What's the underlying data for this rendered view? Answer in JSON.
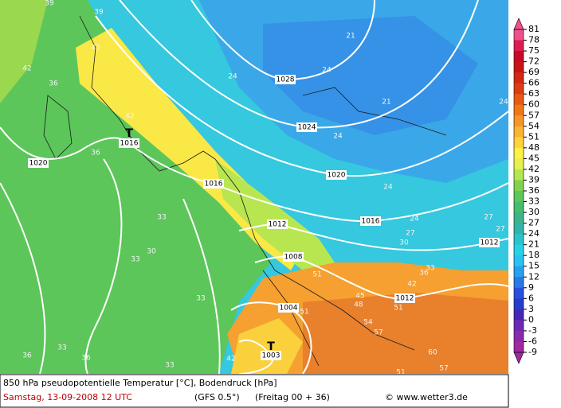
{
  "map": {
    "title": "850 hPa pseudopotentielle Temperatur [°C], Bodendruck [hPa]",
    "date": "Samstag, 13-09-2008  12 UTC",
    "model": "(GFS 0.5°)",
    "run": "(Freitag 00 + 36)",
    "credit": "© www.wetter3.de",
    "lows": [
      "T",
      "T"
    ],
    "pressure_labels": [
      "1028",
      "1024",
      "1020",
      "1020",
      "1016",
      "1016",
      "1016",
      "1012",
      "1012",
      "1012",
      "1008",
      "1004",
      "1003"
    ],
    "temperature_labels": [
      "39",
      "39",
      "42",
      "42",
      "36",
      "42",
      "36",
      "33",
      "30",
      "33",
      "33",
      "33",
      "36",
      "36",
      "33",
      "42",
      "51",
      "51",
      "48",
      "54",
      "57",
      "60",
      "57",
      "51",
      "51",
      "42",
      "36",
      "33",
      "30",
      "27",
      "24",
      "24",
      "24",
      "24",
      "21",
      "21",
      "24",
      "24",
      "27",
      "27",
      "45"
    ],
    "colorbar": {
      "ticks": [
        81,
        78,
        75,
        72,
        69,
        66,
        63,
        60,
        57,
        54,
        51,
        48,
        45,
        42,
        39,
        36,
        33,
        30,
        27,
        24,
        21,
        18,
        15,
        12,
        9,
        6,
        3,
        0,
        -3,
        -6,
        -9
      ],
      "colors": [
        "#f0508c",
        "#dc1e50",
        "#c80a28",
        "#c81414",
        "#d22814",
        "#dc3c14",
        "#e65a14",
        "#f07814",
        "#f59628",
        "#fab432",
        "#ffd23c",
        "#fff046",
        "#e6f050",
        "#b4e650",
        "#82d250",
        "#5ac85a",
        "#46be6e",
        "#3cb48c",
        "#32b4aa",
        "#2dc3cd",
        "#28d2e6",
        "#28c3f0",
        "#289ff0",
        "#2878e6",
        "#2850dc",
        "#283cc8",
        "#4628b4",
        "#6e28b4",
        "#8c28aa",
        "#a028a0"
      ]
    }
  }
}
